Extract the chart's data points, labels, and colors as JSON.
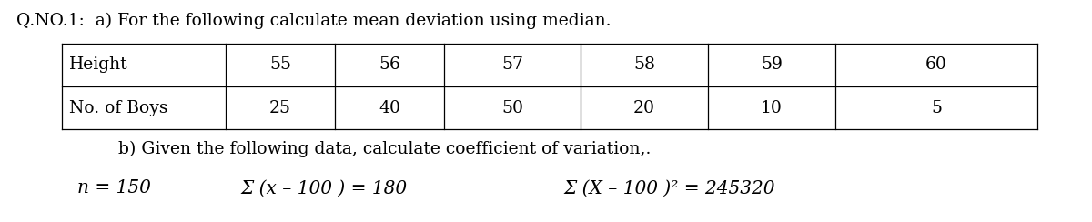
{
  "title_line": "Q.NO.1:  a) For the following calculate mean deviation using median.",
  "table_headers": [
    "Height",
    "55",
    "56",
    "57",
    "58",
    "59",
    "60"
  ],
  "table_row2": [
    "No. of Boys",
    "25",
    "40",
    "50",
    "20",
    "10",
    "5"
  ],
  "part_b_line": "b) Given the following data, calculate coefficient of variation,.",
  "formula_n": "n = 150",
  "formula_sum1": "Σ (x – 100 ) = 180",
  "formula_sum2": "Σ (X – 100 )² = 245320",
  "bg_color": "#ffffff",
  "text_color": "#000000",
  "font_size_title": 13.5,
  "font_size_table": 13.5,
  "font_size_text": 13.5,
  "font_size_formula": 14.5
}
